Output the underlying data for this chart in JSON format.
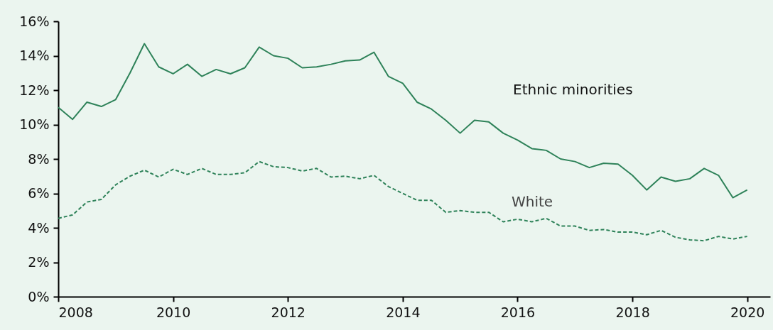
{
  "chart_data": {
    "type": "line",
    "x": [
      2008,
      2008.25,
      2008.5,
      2008.75,
      2009,
      2009.25,
      2009.5,
      2009.75,
      2010,
      2010.25,
      2010.5,
      2010.75,
      2011,
      2011.25,
      2011.5,
      2011.75,
      2012,
      2012.25,
      2012.5,
      2012.75,
      2013,
      2013.25,
      2013.5,
      2013.75,
      2014,
      2014.25,
      2014.5,
      2014.75,
      2015,
      2015.25,
      2015.5,
      2015.75,
      2016,
      2016.25,
      2016.5,
      2016.75,
      2017,
      2017.25,
      2017.5,
      2017.75,
      2018,
      2018.25,
      2018.5,
      2018.75,
      2019,
      2019.25,
      2019.5,
      2019.75,
      2020
    ],
    "series": [
      {
        "name": "Ethnic minorities",
        "color": "#2e8259",
        "line_style": "solid",
        "values": [
          11.0,
          10.3,
          11.3,
          11.05,
          11.45,
          13.0,
          14.7,
          13.35,
          12.95,
          13.5,
          12.8,
          13.2,
          12.95,
          13.3,
          14.5,
          14.0,
          13.85,
          13.3,
          13.35,
          13.5,
          13.7,
          13.75,
          14.2,
          12.8,
          12.4,
          11.3,
          10.9,
          10.25,
          9.5,
          10.25,
          10.15,
          9.5,
          9.1,
          8.6,
          8.5,
          8.0,
          7.85,
          7.5,
          7.75,
          7.7,
          7.05,
          6.2,
          6.95,
          6.7,
          6.85,
          7.45,
          7.05,
          5.75,
          6.2
        ]
      },
      {
        "name": "White",
        "color": "#2e8259",
        "line_style": "dashed",
        "values": [
          4.55,
          4.75,
          5.5,
          5.65,
          6.5,
          7.0,
          7.35,
          6.95,
          7.4,
          7.1,
          7.45,
          7.1,
          7.1,
          7.2,
          7.85,
          7.55,
          7.5,
          7.3,
          7.45,
          6.95,
          7.0,
          6.85,
          7.05,
          6.4,
          6.0,
          5.6,
          5.6,
          4.9,
          5.0,
          4.9,
          4.9,
          4.35,
          4.5,
          4.35,
          4.55,
          4.1,
          4.1,
          3.85,
          3.9,
          3.75,
          3.75,
          3.6,
          3.85,
          3.45,
          3.3,
          3.25,
          3.5,
          3.35,
          3.5
        ]
      }
    ],
    "xlim": [
      2008,
      2020.4
    ],
    "xticks": [
      2008,
      2010,
      2012,
      2014,
      2016,
      2018,
      2020
    ],
    "ylim": [
      0,
      16
    ],
    "yticks": [
      {
        "value": 0,
        "label": "0%"
      },
      {
        "value": 2,
        "label": "2%"
      },
      {
        "value": 4,
        "label": "4%"
      },
      {
        "value": 6,
        "label": "6%"
      },
      {
        "value": 8,
        "label": "8%"
      },
      {
        "value": 10,
        "label": "10%"
      },
      {
        "value": 12,
        "label": "12%"
      },
      {
        "value": 14,
        "label": "14%"
      },
      {
        "value": 16,
        "label": "16%"
      }
    ],
    "grid": false,
    "legend": false
  }
}
